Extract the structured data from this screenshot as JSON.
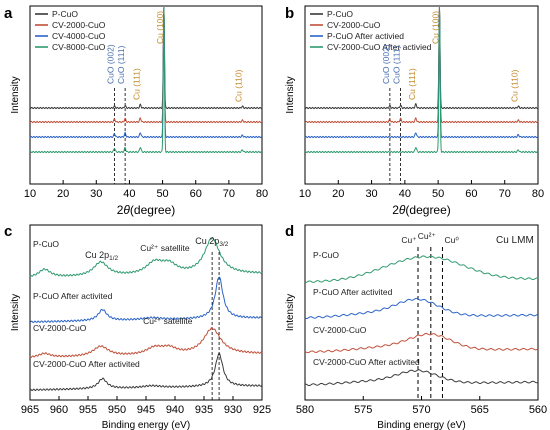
{
  "panel_letters": [
    "a",
    "b",
    "c",
    "d"
  ],
  "colors": {
    "black": "#3a3a3a",
    "red": "#c0503a",
    "blue": "#2a63c8",
    "green": "#2e9a6e",
    "cu": "#c58a2a",
    "cuo": "#4a6fb0"
  },
  "chart_data": [
    {
      "panel": "a",
      "type": "line",
      "xlabel": "2θ(degree)",
      "ylabel": "Intensity",
      "xlim": [
        10,
        80
      ],
      "xticks": [
        10,
        20,
        30,
        40,
        50,
        60,
        70,
        80
      ],
      "legend_position": "top-left",
      "series": [
        {
          "name": "P-CuO",
          "color": "black",
          "peaks": [
            [
              35.5,
              0.03
            ],
            [
              38.7,
              0.04
            ],
            [
              43.3,
              0.06
            ],
            [
              50.4,
              1.0
            ],
            [
              74.1,
              0.03
            ]
          ]
        },
        {
          "name": "CV-2000-CuO",
          "color": "red",
          "peaks": [
            [
              35.5,
              0.05
            ],
            [
              38.7,
              0.06
            ],
            [
              43.3,
              0.07
            ],
            [
              50.4,
              1.0
            ],
            [
              74.1,
              0.03
            ]
          ]
        },
        {
          "name": "CV-4000-CuO",
          "color": "blue",
          "peaks": [
            [
              35.5,
              0.06
            ],
            [
              38.7,
              0.07
            ],
            [
              43.3,
              0.08
            ],
            [
              50.4,
              1.0
            ],
            [
              74.1,
              0.03
            ]
          ]
        },
        {
          "name": "CV-8000-CuO",
          "color": "green",
          "peaks": [
            [
              35.5,
              0.07
            ],
            [
              38.7,
              0.08
            ],
            [
              43.3,
              0.09
            ],
            [
              50.4,
              1.0
            ],
            [
              74.1,
              0.04
            ]
          ]
        }
      ],
      "annotations": [
        {
          "text": "CuO (002)",
          "x": 35.5,
          "color": "cuo"
        },
        {
          "text": "CuO (111)",
          "x": 38.7,
          "color": "cuo"
        },
        {
          "text": "Cu (111)",
          "x": 43.3,
          "color": "cu"
        },
        {
          "text": "Cu (100)",
          "x": 50.4,
          "color": "cu"
        },
        {
          "text": "Cu (110)",
          "x": 74.1,
          "color": "cu"
        }
      ],
      "dashed_x": [
        35.5,
        38.7
      ]
    },
    {
      "panel": "b",
      "type": "line",
      "xlabel": "2θ(degree)",
      "ylabel": "Intensity",
      "xlim": [
        10,
        80
      ],
      "xticks": [
        10,
        20,
        30,
        40,
        50,
        60,
        70,
        80
      ],
      "legend_position": "top-left",
      "series": [
        {
          "name": "P-CuO",
          "color": "black",
          "peaks": [
            [
              35.5,
              0.04
            ],
            [
              38.7,
              0.05
            ],
            [
              43.3,
              0.07
            ],
            [
              50.4,
              1.0
            ],
            [
              74.1,
              0.03
            ]
          ]
        },
        {
          "name": "CV-2000-CuO",
          "color": "red",
          "peaks": [
            [
              35.5,
              0.05
            ],
            [
              38.7,
              0.06
            ],
            [
              43.3,
              0.07
            ],
            [
              50.4,
              1.0
            ],
            [
              74.1,
              0.03
            ]
          ]
        },
        {
          "name": "P-CuO  After activied",
          "color": "blue",
          "peaks": [
            [
              43.3,
              0.08
            ],
            [
              50.4,
              1.0
            ],
            [
              74.1,
              0.04
            ]
          ]
        },
        {
          "name": "CV-2000-CuO  After activied",
          "color": "green",
          "peaks": [
            [
              43.3,
              0.09
            ],
            [
              50.4,
              1.0
            ],
            [
              74.1,
              0.04
            ]
          ]
        }
      ],
      "annotations": [
        {
          "text": "CuO (002)",
          "x": 35.5,
          "color": "cuo"
        },
        {
          "text": "CuO (111)",
          "x": 38.7,
          "color": "cuo"
        },
        {
          "text": "Cu (111)",
          "x": 43.3,
          "color": "cu"
        },
        {
          "text": "Cu (100)",
          "x": 50.4,
          "color": "cu"
        },
        {
          "text": "Cu (110)",
          "x": 74.1,
          "color": "cu"
        }
      ],
      "dashed_x": [
        35.5,
        38.7
      ]
    },
    {
      "panel": "c",
      "type": "line",
      "xlabel": "Binding energy (eV)",
      "ylabel": "Intensity",
      "xlim": [
        965,
        925
      ],
      "xticks": [
        965,
        960,
        955,
        950,
        945,
        940,
        935,
        930,
        925
      ],
      "series": [
        {
          "name": "P-CuO",
          "color": "green",
          "label": "P-CuO"
        },
        {
          "name": "P-CuO  After activited",
          "color": "blue",
          "label": "P-CuO  After activited"
        },
        {
          "name": "CV-2000-CuO",
          "color": "red",
          "label": "CV-2000-CuO"
        },
        {
          "name": "CV-2000-CuO After activited",
          "color": "black",
          "label": "CV-2000-CuO After activited"
        }
      ],
      "annotations": [
        {
          "text": "Cu 2p1/2",
          "x": 952.5
        },
        {
          "text": "Cu²⁺ satellite",
          "x": 942.5
        },
        {
          "text": "Cu 2p3/2",
          "x": 933.0
        },
        {
          "text": "Cu²⁺ satellite",
          "x": 942.0
        }
      ],
      "dashed_x": [
        933.6,
        932.4
      ]
    },
    {
      "panel": "d",
      "type": "line",
      "title": "Cu LMM",
      "xlabel": "Binding energy (eV)",
      "ylabel": "Intensity",
      "xlim": [
        580,
        560
      ],
      "xticks": [
        580,
        575,
        570,
        565,
        560
      ],
      "series": [
        {
          "name": "P-CuO",
          "color": "green",
          "label": "P-CuO"
        },
        {
          "name": "P-CuO  After activited",
          "color": "blue",
          "label": "P-CuO  After activited"
        },
        {
          "name": "CV-2000-CuO",
          "color": "red",
          "label": "CV-2000-CuO"
        },
        {
          "name": "CV-2000-CuO After activited",
          "color": "black",
          "label": "CV-2000-CuO After activited"
        }
      ],
      "annotations": [
        {
          "text": "Cu⁺",
          "x": 570.3
        },
        {
          "text": "Cu²⁺",
          "x": 569.2
        },
        {
          "text": "Cu⁰",
          "x": 568.2
        }
      ],
      "dashed_x": [
        570.3,
        569.2,
        568.2
      ]
    }
  ]
}
